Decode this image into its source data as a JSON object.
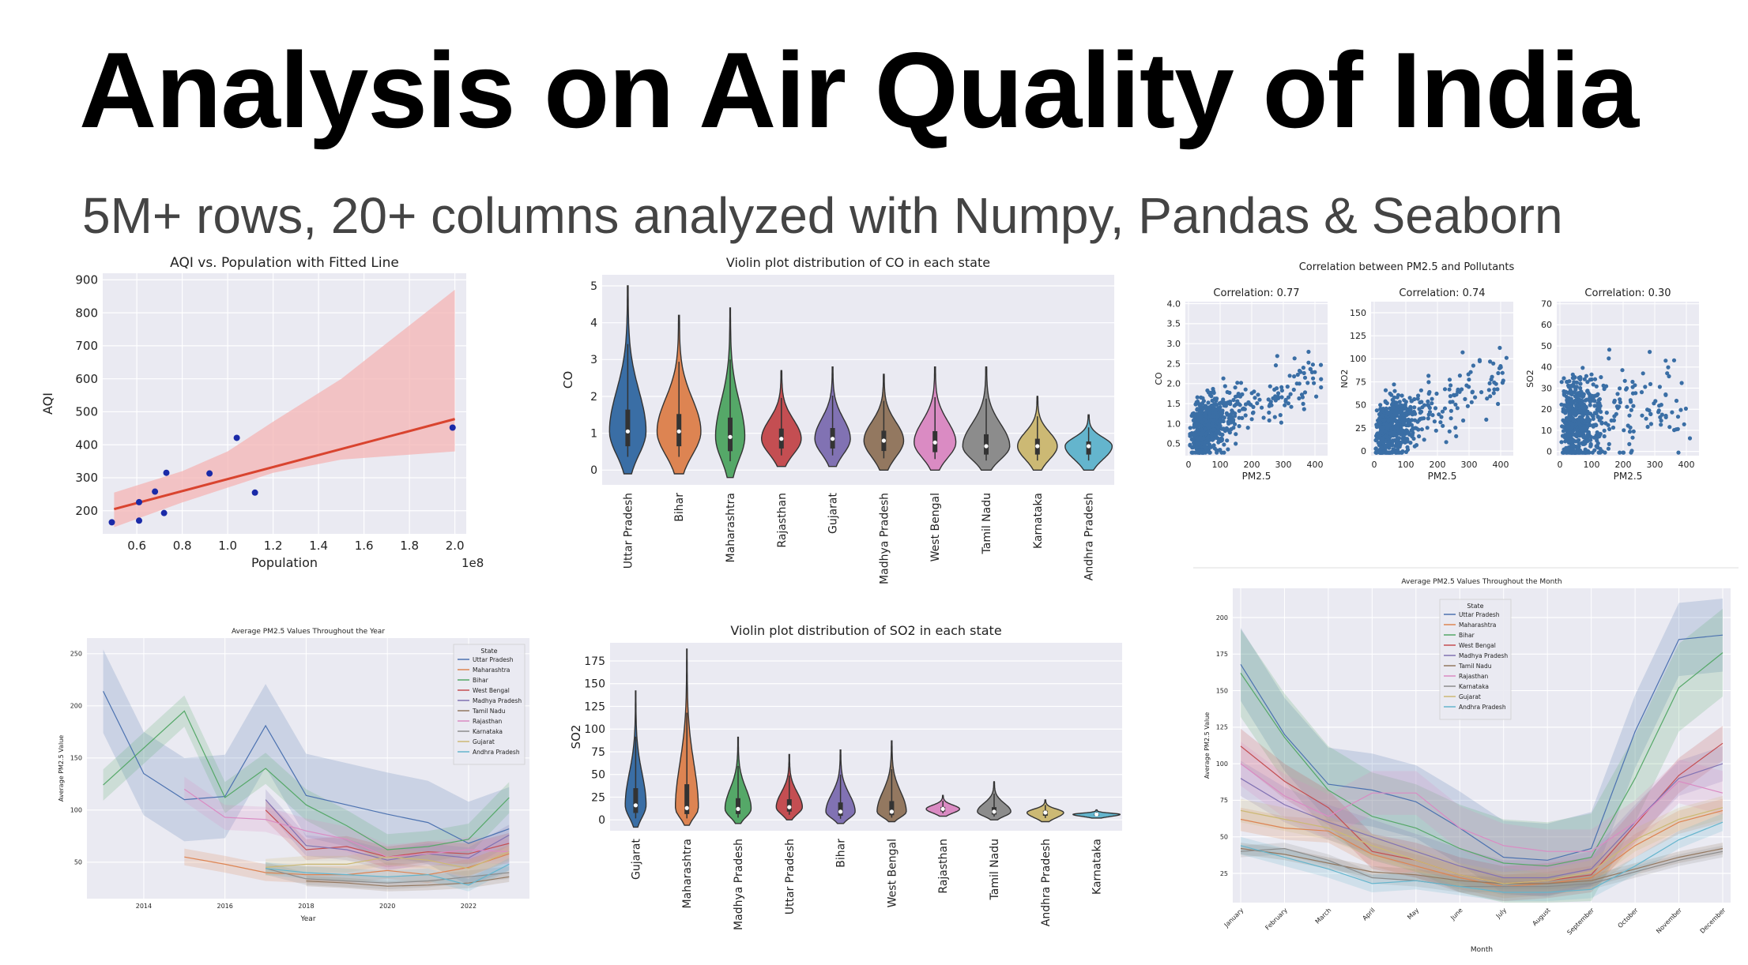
{
  "page": {
    "title": "Analysis on Air Quality of India",
    "subtitle": "5M+ rows, 20+ columns analyzed with Numpy, Pandas & Seaborn"
  },
  "colors": {
    "plot_bg": "#eaeaf2",
    "grid": "#ffffff",
    "scatter_blue": "#3a6ea5",
    "fit_red": "#d9442f",
    "fit_band": "#f4b4b4",
    "dark_blue_point": "#1a2aa8"
  },
  "chart_data": [
    {
      "id": "aqi_population",
      "type": "scatter",
      "title": "AQI vs. Population with Fitted Line",
      "xlabel": "Population",
      "ylabel": "AQI",
      "x_multiplier_label": "1e8",
      "xlim": [
        0.45,
        2.05
      ],
      "ylim": [
        130,
        920
      ],
      "xticks": [
        0.6,
        0.8,
        1.0,
        1.2,
        1.4,
        1.6,
        1.8,
        2.0
      ],
      "xtick_labels": [
        "0.6",
        "0.8",
        "1.0",
        "1.2",
        "1.4",
        "1.6",
        "1.8",
        "2.0"
      ],
      "yticks": [
        200,
        300,
        400,
        500,
        600,
        700,
        800,
        900
      ],
      "points": [
        {
          "x": 0.49,
          "y": 165
        },
        {
          "x": 0.61,
          "y": 170
        },
        {
          "x": 0.61,
          "y": 226
        },
        {
          "x": 0.68,
          "y": 258
        },
        {
          "x": 0.72,
          "y": 193
        },
        {
          "x": 0.73,
          "y": 315
        },
        {
          "x": 0.92,
          "y": 313
        },
        {
          "x": 1.04,
          "y": 421
        },
        {
          "x": 1.12,
          "y": 255
        },
        {
          "x": 1.99,
          "y": 452
        }
      ],
      "fit_line": {
        "x": [
          0.5,
          2.0
        ],
        "y": [
          205,
          478
        ]
      },
      "ci_band": {
        "x": [
          0.5,
          0.8,
          1.0,
          1.2,
          1.5,
          2.0
        ],
        "upper": [
          255,
          320,
          380,
          470,
          600,
          870
        ],
        "lower": [
          150,
          225,
          270,
          315,
          355,
          380
        ]
      },
      "grid": true
    },
    {
      "id": "violin_co",
      "type": "violin",
      "title": "Violin plot distribution of CO in each state",
      "ylabel": "CO",
      "ylim": [
        -0.4,
        5.3
      ],
      "yticks": [
        0,
        1,
        2,
        3,
        4,
        5
      ],
      "categories": [
        "Uttar Pradesh",
        "Bihar",
        "Maharashtra",
        "Rajasthan",
        "Gujarat",
        "Madhya Pradesh",
        "West Bengal",
        "Tamil Nadu",
        "Karnataka",
        "Andhra Pradesh"
      ],
      "colors": [
        "#3a6ea5",
        "#dd8452",
        "#55a868",
        "#c44e52",
        "#8172b3",
        "#937860",
        "#da8bc3",
        "#8c8c8c",
        "#ccb974",
        "#64b5cd"
      ],
      "min": [
        -0.1,
        -0.1,
        -0.2,
        0.1,
        0.1,
        0.0,
        0.0,
        0.0,
        0.0,
        0.0
      ],
      "max": [
        5.0,
        4.2,
        4.4,
        2.7,
        2.8,
        2.6,
        2.8,
        2.8,
        2.0,
        1.5
      ],
      "median": [
        1.05,
        1.05,
        0.9,
        0.85,
        0.85,
        0.8,
        0.75,
        0.65,
        0.65,
        0.65
      ],
      "width": [
        0.35,
        0.42,
        0.28,
        0.38,
        0.34,
        0.38,
        0.4,
        0.45,
        0.38,
        0.45
      ],
      "grid": true
    },
    {
      "id": "pm25_correlation",
      "type": "scatter",
      "title": "Correlation between PM2.5 and Pollutants",
      "panels": [
        {
          "subtitle": "Correlation: 0.77",
          "ylabel": "CO",
          "xlabel": "PM2.5",
          "ylim": [
            0.2,
            4.05
          ],
          "yticks": [
            0.5,
            1.0,
            1.5,
            2.0,
            2.5,
            3.0,
            3.5,
            4.0
          ],
          "ytick_labels": [
            "0.5",
            "1.0",
            "1.5",
            "2.0",
            "2.5",
            "3.0",
            "3.5",
            "4.0"
          ],
          "corr": 0.77
        },
        {
          "subtitle": "Correlation: 0.74",
          "ylabel": "NO2",
          "xlabel": "PM2.5",
          "ylim": [
            -5,
            162
          ],
          "yticks": [
            0,
            25,
            50,
            75,
            100,
            125,
            150
          ],
          "ytick_labels": [
            "0",
            "25",
            "50",
            "75",
            "100",
            "125",
            "150"
          ],
          "corr": 0.74
        },
        {
          "subtitle": "Correlation: 0.30",
          "ylabel": "SO2",
          "xlabel": "PM2.5",
          "ylim": [
            -2,
            71
          ],
          "yticks": [
            0,
            10,
            20,
            30,
            40,
            50,
            60,
            70
          ],
          "ytick_labels": [
            "0",
            "10",
            "20",
            "30",
            "40",
            "50",
            "60",
            "70"
          ],
          "corr": 0.3
        }
      ],
      "xlim": [
        -10,
        440
      ],
      "xticks": [
        0,
        100,
        200,
        300,
        400
      ],
      "grid": true
    },
    {
      "id": "pm25_year",
      "type": "line",
      "title": "Average PM2.5 Values Throughout the Year",
      "xlabel": "Year",
      "ylabel": "Average PM2.5 Value",
      "xlim": [
        2012.6,
        2023.5
      ],
      "ylim": [
        15,
        265
      ],
      "xticks": [
        2014,
        2016,
        2018,
        2020,
        2022
      ],
      "yticks": [
        50,
        100,
        150,
        200,
        250
      ],
      "legend_title": "State",
      "legend_position": "upper right",
      "series": [
        {
          "name": "Uttar Pradesh",
          "color": "#4c72b0",
          "x": [
            2013,
            2014,
            2015,
            2016,
            2017,
            2018,
            2019,
            2020,
            2021,
            2022,
            2023
          ],
          "y": [
            214,
            135,
            110,
            113,
            181,
            114,
            105,
            96,
            88,
            68,
            82
          ],
          "band": 40
        },
        {
          "name": "Maharashtra",
          "color": "#dd8452",
          "x": [
            2015,
            2016,
            2017,
            2018,
            2019,
            2020,
            2021,
            2022,
            2023
          ],
          "y": [
            55,
            48,
            40,
            38,
            38,
            42,
            38,
            45,
            58
          ],
          "band": 8
        },
        {
          "name": "Bihar",
          "color": "#55a868",
          "x": [
            2013,
            2015,
            2016,
            2017,
            2018,
            2019,
            2020,
            2021,
            2022,
            2023
          ],
          "y": [
            124,
            195,
            112,
            140,
            105,
            85,
            62,
            65,
            72,
            112
          ],
          "band": 15
        },
        {
          "name": "West Bengal",
          "color": "#c44e52",
          "x": [
            2017,
            2018,
            2019,
            2020,
            2021,
            2022,
            2023
          ],
          "y": [
            100,
            62,
            65,
            55,
            60,
            58,
            68
          ],
          "band": 10
        },
        {
          "name": "Madhya Pradesh",
          "color": "#8172b3",
          "x": [
            2017,
            2018,
            2019,
            2020,
            2021,
            2022,
            2023
          ],
          "y": [
            110,
            66,
            62,
            52,
            58,
            54,
            76
          ],
          "band": 10
        },
        {
          "name": "Tamil Nadu",
          "color": "#937860",
          "x": [
            2018,
            2019,
            2020,
            2021,
            2022,
            2023
          ],
          "y": [
            32,
            30,
            27,
            28,
            30,
            36
          ],
          "band": 5
        },
        {
          "name": "Rajasthan",
          "color": "#da8bc3",
          "x": [
            2015,
            2016,
            2017,
            2018,
            2019,
            2020,
            2021,
            2022,
            2023
          ],
          "y": [
            120,
            93,
            91,
            80,
            72,
            55,
            58,
            62,
            60
          ],
          "band": 12
        },
        {
          "name": "Karnataka",
          "color": "#8c8c8c",
          "x": [
            2017,
            2018,
            2019,
            2020,
            2021,
            2022,
            2023
          ],
          "y": [
            44,
            34,
            32,
            30,
            32,
            36,
            40
          ],
          "band": 6
        },
        {
          "name": "Gujarat",
          "color": "#ccb974",
          "x": [
            2017,
            2018,
            2019,
            2020,
            2021,
            2022,
            2023
          ],
          "y": [
            45,
            48,
            48,
            55,
            52,
            44,
            60
          ],
          "band": 8
        },
        {
          "name": "Andhra Pradesh",
          "color": "#64b5cd",
          "x": [
            2017,
            2018,
            2019,
            2020,
            2021,
            2022,
            2023
          ],
          "y": [
            44,
            40,
            38,
            36,
            38,
            28,
            48
          ],
          "band": 6
        }
      ],
      "grid": true
    },
    {
      "id": "violin_so2",
      "type": "violin",
      "title": "Violin plot distribution of SO2 in each state",
      "ylabel": "SO2",
      "ylim": [
        -12,
        195
      ],
      "yticks": [
        0,
        25,
        50,
        75,
        100,
        125,
        150,
        175
      ],
      "categories": [
        "Gujarat",
        "Maharashtra",
        "Madhya Pradesh",
        "Uttar Pradesh",
        "Bihar",
        "West Bengal",
        "Rajasthan",
        "Tamil Nadu",
        "Andhra Pradesh",
        "Karnataka"
      ],
      "colors": [
        "#3a6ea5",
        "#dd8452",
        "#55a868",
        "#c44e52",
        "#8172b3",
        "#937860",
        "#da8bc3",
        "#8c8c8c",
        "#ccb974",
        "#64b5cd"
      ],
      "min": [
        -8,
        -6,
        -4,
        0,
        -4,
        -2,
        4,
        0,
        -2,
        2
      ],
      "max": [
        142,
        188,
        91,
        72,
        77,
        87,
        27,
        42,
        22,
        11
      ],
      "median": [
        16,
        13,
        12,
        14,
        9,
        9,
        12,
        9,
        8,
        6
      ],
      "width": [
        0.2,
        0.22,
        0.25,
        0.25,
        0.28,
        0.28,
        0.32,
        0.32,
        0.35,
        0.45
      ],
      "grid": true
    },
    {
      "id": "pm25_month",
      "type": "line",
      "title": "Average PM2.5 Values Throughout the Month",
      "xlabel": "Month",
      "ylabel": "Average PM2.5 Value",
      "categories": [
        "January",
        "February",
        "March",
        "April",
        "May",
        "June",
        "July",
        "August",
        "September",
        "October",
        "November",
        "December"
      ],
      "ylim": [
        5,
        220
      ],
      "yticks": [
        25,
        50,
        75,
        100,
        125,
        150,
        175,
        200
      ],
      "legend_title": "State",
      "legend_position": "upper left",
      "series": [
        {
          "name": "Uttar Pradesh",
          "color": "#4c72b0",
          "y": [
            168,
            120,
            86,
            82,
            74,
            56,
            36,
            34,
            42,
            122,
            185,
            188
          ],
          "band": 25
        },
        {
          "name": "Maharashtra",
          "color": "#dd8452",
          "y": [
            62,
            56,
            54,
            38,
            30,
            22,
            16,
            18,
            22,
            44,
            60,
            68
          ],
          "band": 8
        },
        {
          "name": "Bihar",
          "color": "#55a868",
          "y": [
            162,
            118,
            82,
            64,
            56,
            42,
            32,
            30,
            36,
            90,
            152,
            176
          ],
          "band": 30
        },
        {
          "name": "West Bengal",
          "color": "#c44e52",
          "y": [
            112,
            88,
            70,
            40,
            34,
            24,
            18,
            20,
            24,
            58,
            92,
            114
          ],
          "band": 12
        },
        {
          "name": "Madhya Pradesh",
          "color": "#8172b3",
          "y": [
            90,
            72,
            60,
            50,
            40,
            30,
            22,
            22,
            28,
            60,
            90,
            100
          ],
          "band": 12
        },
        {
          "name": "Tamil Nadu",
          "color": "#937860",
          "y": [
            42,
            38,
            32,
            26,
            24,
            20,
            18,
            18,
            20,
            28,
            36,
            42
          ],
          "band": 4
        },
        {
          "name": "Rajasthan",
          "color": "#da8bc3",
          "y": [
            100,
            78,
            64,
            80,
            80,
            56,
            44,
            40,
            40,
            60,
            88,
            80
          ],
          "band": 15
        },
        {
          "name": "Karnataka",
          "color": "#8c8c8c",
          "y": [
            40,
            42,
            34,
            22,
            20,
            16,
            16,
            16,
            18,
            26,
            34,
            40
          ],
          "band": 4
        },
        {
          "name": "Gujarat",
          "color": "#ccb974",
          "y": [
            68,
            62,
            56,
            44,
            34,
            24,
            18,
            20,
            26,
            48,
            62,
            70
          ],
          "band": 8
        },
        {
          "name": "Andhra Pradesh",
          "color": "#64b5cd",
          "y": [
            44,
            36,
            28,
            18,
            20,
            16,
            12,
            12,
            14,
            30,
            48,
            60
          ],
          "band": 6
        }
      ],
      "grid": true
    }
  ]
}
